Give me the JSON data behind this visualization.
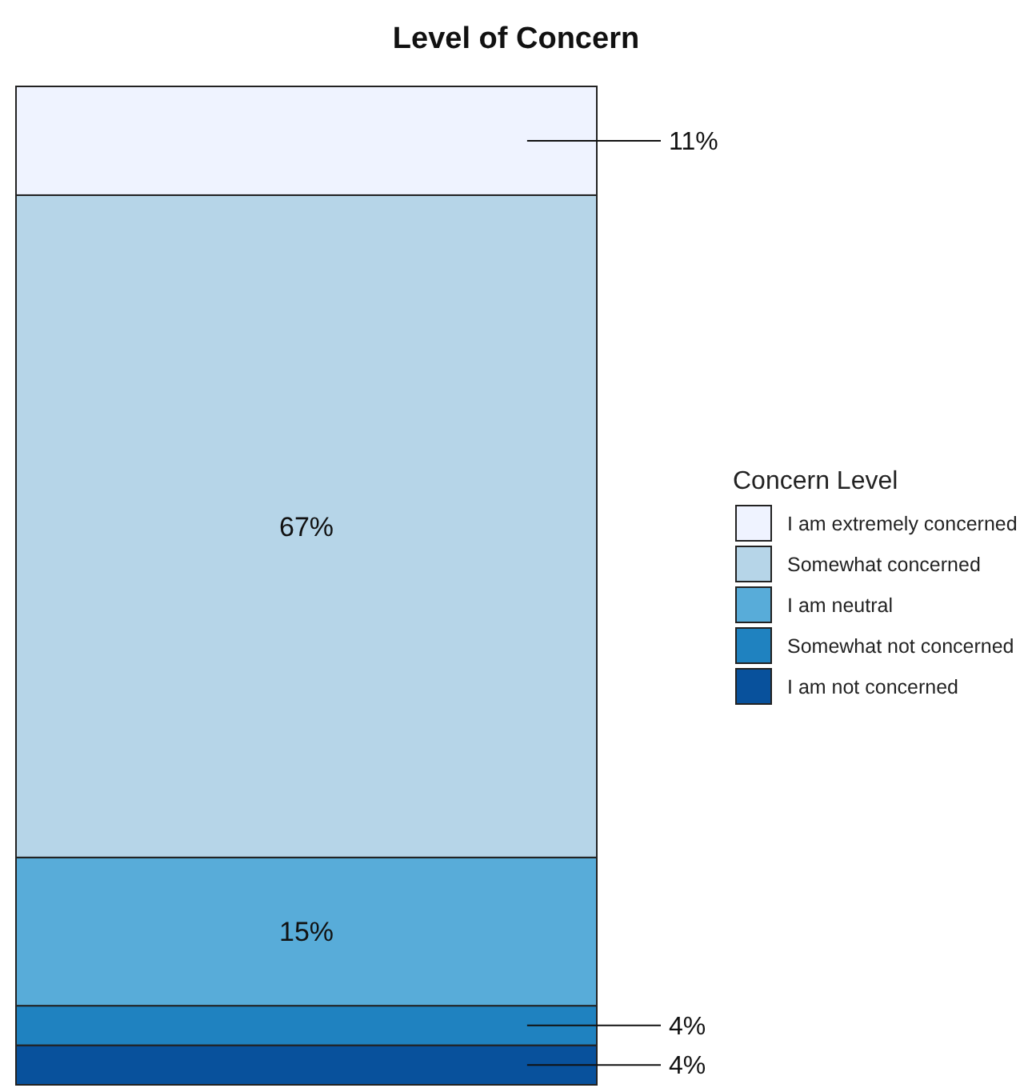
{
  "chart_data": {
    "type": "bar",
    "title": "Level of Concern",
    "legend_title": "Concern Level",
    "categories": [
      null
    ],
    "stacked": true,
    "legend": "right",
    "series": [
      {
        "name": "I am not concerned",
        "color": "#08519c",
        "values": [
          4
        ],
        "value_labels": [
          "4%"
        ]
      },
      {
        "name": "Somewhat not concerned",
        "color": "#1f82c0",
        "values": [
          4
        ],
        "value_labels": [
          "4%"
        ]
      },
      {
        "name": "I am neutral",
        "color": "#58acd9",
        "values": [
          15
        ],
        "value_labels": [
          "15%"
        ]
      },
      {
        "name": "Somewhat concerned",
        "color": "#b6d5e8",
        "values": [
          67
        ],
        "value_labels": [
          "67%"
        ]
      },
      {
        "name": "I am extremely concerned",
        "color": "#eff3ff",
        "values": [
          11
        ],
        "value_labels": [
          "11%"
        ]
      }
    ]
  }
}
